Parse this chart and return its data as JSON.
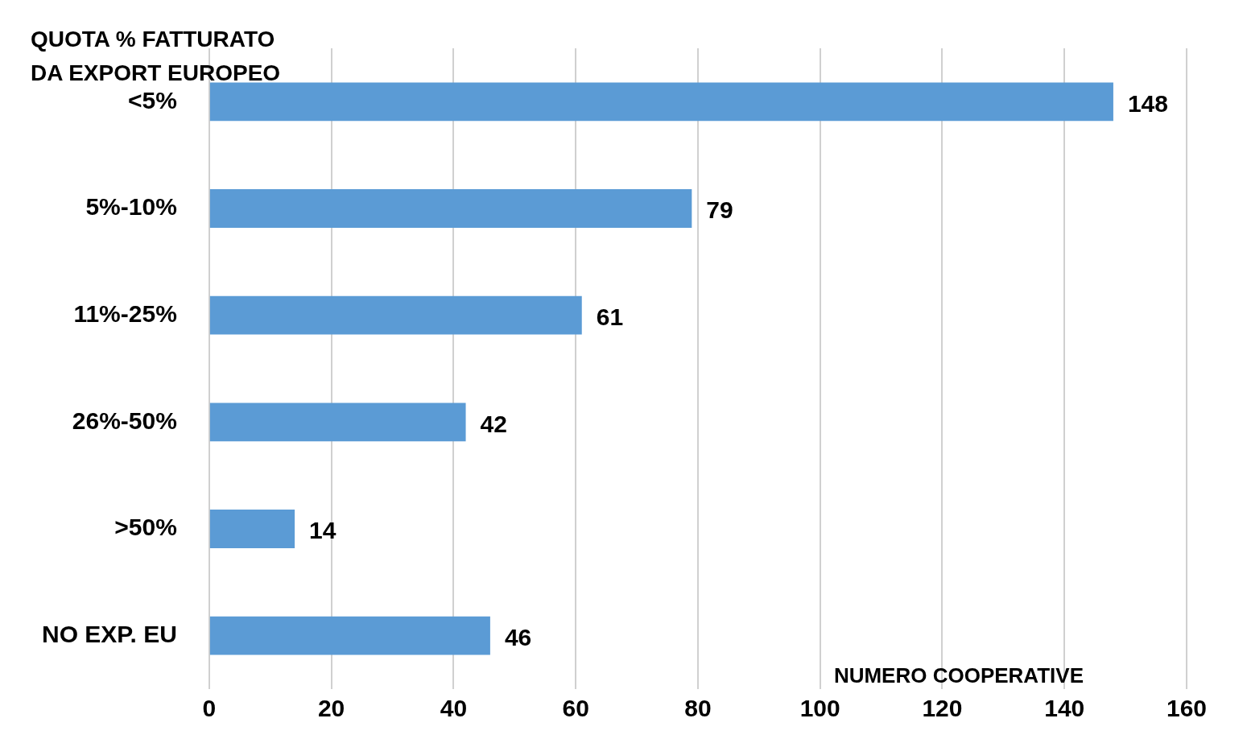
{
  "chart_data": {
    "type": "bar",
    "orientation": "horizontal",
    "ylabel": "QUOTA % FATTURATO DA EXPORT EUROPEO",
    "xlabel": "NUMERO COOPERATIVE",
    "categories": [
      "<5%",
      "5%-10%",
      "11%-25%",
      "26%-50%",
      ">50%",
      "NO EXP. EU"
    ],
    "values": [
      148,
      79,
      61,
      42,
      14,
      46
    ],
    "color": "#5b9bd5",
    "xlim": [
      0,
      160
    ],
    "xticks": [
      0,
      20,
      40,
      60,
      80,
      100,
      120,
      140,
      160
    ],
    "grid": "x",
    "data_labels": true,
    "legend": false
  }
}
